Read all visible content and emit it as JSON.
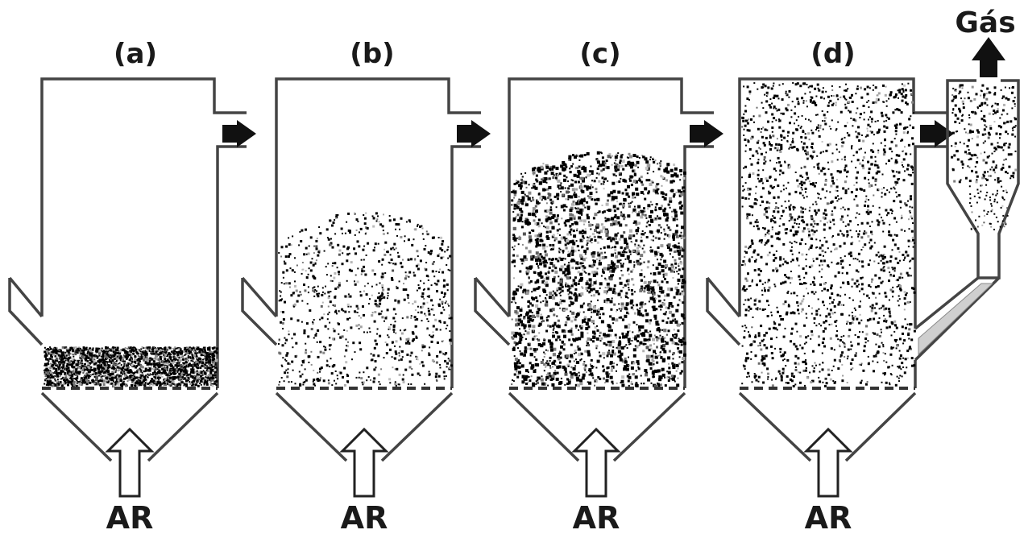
{
  "panels": [
    {
      "id": "a",
      "label": "(a)",
      "air_label": "AR"
    },
    {
      "id": "b",
      "label": "(b)",
      "air_label": "AR"
    },
    {
      "id": "c",
      "label": "(c)",
      "air_label": "AR"
    },
    {
      "id": "d",
      "label": "(d)",
      "air_label": "AR"
    }
  ],
  "gas_label": "Gás"
}
